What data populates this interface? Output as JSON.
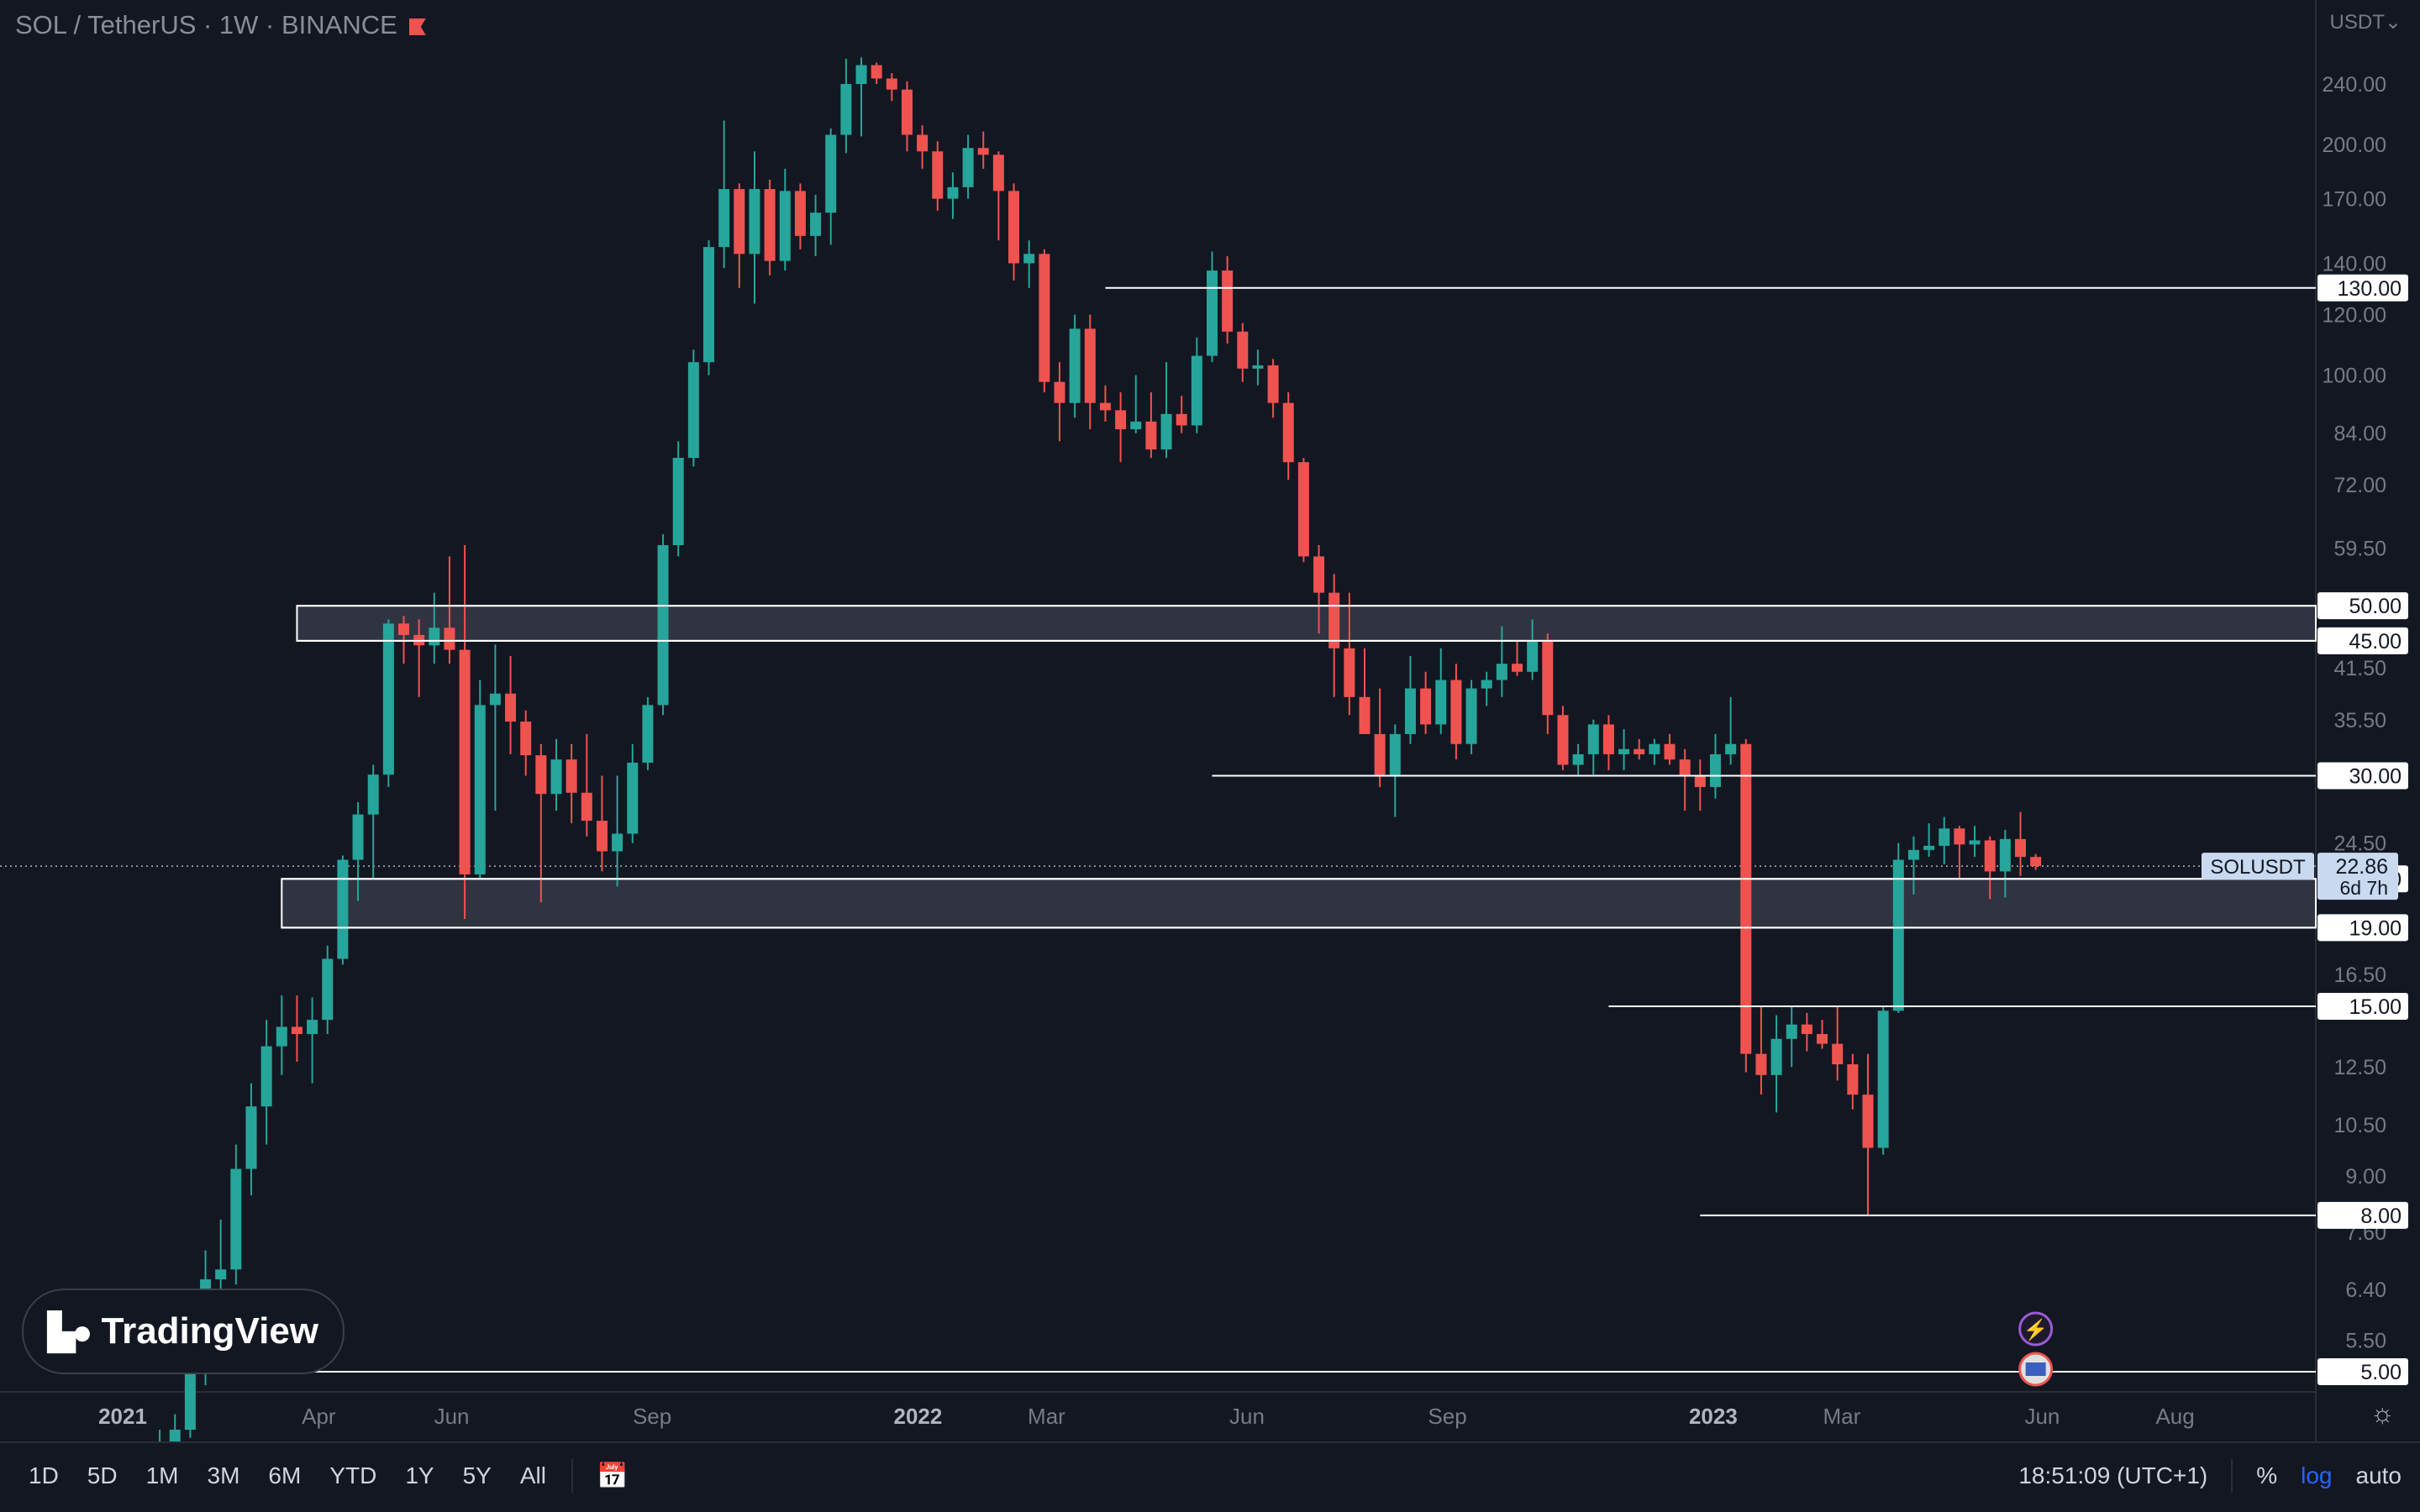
{
  "header": {
    "symbol_title": "SOL / TetherUS · 1W · BINANCE",
    "currency": "USDT",
    "currency_chevron": "chevron-down-icon"
  },
  "logo": {
    "text": "TradingView"
  },
  "bottom_bar": {
    "timeframes": [
      "1D",
      "5D",
      "1M",
      "3M",
      "6M",
      "YTD",
      "1Y",
      "5Y",
      "All"
    ],
    "clock": "18:51:09 (UTC+1)",
    "percent": "%",
    "log": "log",
    "auto": "auto"
  },
  "colors": {
    "bg": "#131722",
    "up": "#26a69a",
    "down": "#ef5350",
    "level": "#ffffff",
    "zone": "#363a45"
  },
  "chart_data": {
    "type": "candlestick",
    "symbol": "SOLUSDT",
    "interval": "1W",
    "scale": "log",
    "y_ticks": [
      240,
      200,
      170,
      140,
      120,
      100,
      84,
      72,
      59.5,
      41.5,
      35.5,
      24.5,
      16.5,
      12.5,
      10.5,
      9,
      7.6,
      6.4,
      5.5
    ],
    "y_tick_labels": [
      "240.00",
      "200.00",
      "170.00",
      "140.00",
      "120.00",
      "100.00",
      "84.00",
      "72.00",
      "59.50",
      "41.50",
      "35.50",
      "24.50",
      "16.50",
      "12.50",
      "10.50",
      "9.00",
      "7.60",
      "6.40",
      "5.50"
    ],
    "x_ticks": [
      {
        "label": "2021",
        "date": "2021-01-01",
        "bold": true
      },
      {
        "label": "Apr",
        "date": "2021-04-01"
      },
      {
        "label": "Jun",
        "date": "2021-06-01"
      },
      {
        "label": "Sep",
        "date": "2021-09-01"
      },
      {
        "label": "2022",
        "date": "2022-01-01",
        "bold": true
      },
      {
        "label": "Mar",
        "date": "2022-03-01"
      },
      {
        "label": "Jun",
        "date": "2022-06-01"
      },
      {
        "label": "Sep",
        "date": "2022-09-01"
      },
      {
        "label": "2023",
        "date": "2023-01-01",
        "bold": true
      },
      {
        "label": "Mar",
        "date": "2023-03-01"
      },
      {
        "label": "Jun",
        "date": "2023-06-01"
      },
      {
        "label": "Aug",
        "date": "2023-08-01"
      }
    ],
    "levels": [
      {
        "price": 130,
        "label": "130.00",
        "start": "2022-03-28"
      },
      {
        "price": 50,
        "label": "50.00",
        "start": "2021-03-22"
      },
      {
        "price": 45,
        "label": "45.00",
        "start": "2021-03-22"
      },
      {
        "price": 30,
        "label": "30.00",
        "start": "2022-05-16"
      },
      {
        "price": 22,
        "label": "22.00",
        "start": "2021-03-15"
      },
      {
        "price": 19,
        "label": "19.00",
        "start": "2021-03-15"
      },
      {
        "price": 15,
        "label": "15.00",
        "start": "2022-11-14"
      },
      {
        "price": 8,
        "label": "8.00",
        "start": "2022-12-26"
      },
      {
        "price": 5,
        "label": "5.00",
        "start": "2020-12-01"
      }
    ],
    "zones": [
      {
        "top": 50,
        "bottom": 45,
        "start": "2021-03-22"
      },
      {
        "top": 22,
        "bottom": 19,
        "start": "2021-03-15"
      }
    ],
    "current_price": {
      "symbol": "SOLUSDT",
      "value": 22.86,
      "label": "22.86",
      "countdown": "6d 7h"
    },
    "candles": [
      {
        "t": "2021-01-18",
        "o": 3.3,
        "h": 4.2,
        "l": 3.1,
        "c": 3.9
      },
      {
        "t": "2021-01-25",
        "o": 3.9,
        "h": 4.4,
        "l": 3.7,
        "c": 4.2
      },
      {
        "t": "2021-02-01",
        "o": 4.2,
        "h": 6.1,
        "l": 4.1,
        "c": 5.0
      },
      {
        "t": "2021-02-08",
        "o": 5.0,
        "h": 7.2,
        "l": 4.8,
        "c": 6.6
      },
      {
        "t": "2021-02-15",
        "o": 6.6,
        "h": 7.9,
        "l": 6.2,
        "c": 6.8
      },
      {
        "t": "2021-02-22",
        "o": 6.8,
        "h": 9.9,
        "l": 6.5,
        "c": 9.2
      },
      {
        "t": "2021-03-01",
        "o": 9.2,
        "h": 11.9,
        "l": 8.5,
        "c": 11.1
      },
      {
        "t": "2021-03-08",
        "o": 11.1,
        "h": 14.4,
        "l": 9.9,
        "c": 13.3
      },
      {
        "t": "2021-03-15",
        "o": 13.3,
        "h": 15.5,
        "l": 12.2,
        "c": 14.1
      },
      {
        "t": "2021-03-22",
        "o": 14.1,
        "h": 15.5,
        "l": 12.7,
        "c": 13.8
      },
      {
        "t": "2021-03-29",
        "o": 13.8,
        "h": 15.4,
        "l": 11.9,
        "c": 14.4
      },
      {
        "t": "2021-04-05",
        "o": 14.4,
        "h": 18.0,
        "l": 13.8,
        "c": 17.3
      },
      {
        "t": "2021-04-12",
        "o": 17.3,
        "h": 23.6,
        "l": 17.0,
        "c": 23.3
      },
      {
        "t": "2021-04-19",
        "o": 23.3,
        "h": 27.7,
        "l": 20.6,
        "c": 26.7
      },
      {
        "t": "2021-04-26",
        "o": 26.7,
        "h": 31.0,
        "l": 22.0,
        "c": 30.1
      },
      {
        "t": "2021-05-03",
        "o": 30.1,
        "h": 48.0,
        "l": 29.0,
        "c": 47.4
      },
      {
        "t": "2021-05-10",
        "o": 47.4,
        "h": 48.5,
        "l": 42.0,
        "c": 45.8
      },
      {
        "t": "2021-05-17",
        "o": 45.8,
        "h": 48.0,
        "l": 38.0,
        "c": 44.4
      },
      {
        "t": "2021-05-24",
        "o": 44.4,
        "h": 52.0,
        "l": 42.0,
        "c": 46.8
      },
      {
        "t": "2021-05-31",
        "o": 46.8,
        "h": 58.0,
        "l": 42.0,
        "c": 43.8
      },
      {
        "t": "2021-06-07",
        "o": 43.8,
        "h": 60.0,
        "l": 19.5,
        "c": 22.3
      },
      {
        "t": "2021-06-14",
        "o": 22.3,
        "h": 40.0,
        "l": 22.0,
        "c": 37.1
      },
      {
        "t": "2021-06-21",
        "o": 37.1,
        "h": 44.5,
        "l": 27.0,
        "c": 38.4
      },
      {
        "t": "2021-06-28",
        "o": 38.4,
        "h": 43.0,
        "l": 32.0,
        "c": 35.3
      },
      {
        "t": "2021-07-05",
        "o": 35.3,
        "h": 36.5,
        "l": 30.0,
        "c": 31.9
      },
      {
        "t": "2021-07-12",
        "o": 31.9,
        "h": 33.0,
        "l": 20.5,
        "c": 28.4
      },
      {
        "t": "2021-07-19",
        "o": 28.4,
        "h": 33.5,
        "l": 27.0,
        "c": 31.5
      },
      {
        "t": "2021-07-26",
        "o": 31.5,
        "h": 33.0,
        "l": 26.0,
        "c": 28.5
      },
      {
        "t": "2021-08-02",
        "o": 28.5,
        "h": 34.0,
        "l": 25.0,
        "c": 26.2
      },
      {
        "t": "2021-08-09",
        "o": 26.2,
        "h": 30.0,
        "l": 22.5,
        "c": 23.9
      },
      {
        "t": "2021-08-16",
        "o": 23.9,
        "h": 30.0,
        "l": 21.5,
        "c": 25.2
      },
      {
        "t": "2021-08-23",
        "o": 25.2,
        "h": 33.0,
        "l": 24.5,
        "c": 31.2
      },
      {
        "t": "2021-08-30",
        "o": 31.2,
        "h": 38.0,
        "l": 30.5,
        "c": 37.1
      },
      {
        "t": "2021-09-06",
        "o": 37.1,
        "h": 62.0,
        "l": 36.0,
        "c": 60.0
      },
      {
        "t": "2021-09-13",
        "o": 60.0,
        "h": 82.0,
        "l": 58.0,
        "c": 78.0
      },
      {
        "t": "2021-09-20",
        "o": 78.0,
        "h": 108.0,
        "l": 76.0,
        "c": 104.0
      },
      {
        "t": "2021-09-27",
        "o": 104.0,
        "h": 150.0,
        "l": 100.0,
        "c": 147.0
      },
      {
        "t": "2021-10-04",
        "o": 147.0,
        "h": 215.0,
        "l": 138.0,
        "c": 175.0
      },
      {
        "t": "2021-10-11",
        "o": 175.0,
        "h": 178.0,
        "l": 130.0,
        "c": 144.0
      },
      {
        "t": "2021-10-18",
        "o": 144.0,
        "h": 196.0,
        "l": 124.0,
        "c": 175.0
      },
      {
        "t": "2021-10-25",
        "o": 175.0,
        "h": 180.0,
        "l": 135.0,
        "c": 141.0
      },
      {
        "t": "2021-11-01",
        "o": 141.0,
        "h": 186.0,
        "l": 137.0,
        "c": 174.0
      },
      {
        "t": "2021-11-08",
        "o": 174.0,
        "h": 178.0,
        "l": 146.0,
        "c": 152.0
      },
      {
        "t": "2021-11-15",
        "o": 152.0,
        "h": 172.0,
        "l": 143.0,
        "c": 163.0
      },
      {
        "t": "2021-11-22",
        "o": 163.0,
        "h": 210.0,
        "l": 148.0,
        "c": 206.0
      },
      {
        "t": "2021-11-29",
        "o": 206.0,
        "h": 259.0,
        "l": 195.0,
        "c": 240.0
      },
      {
        "t": "2021-12-06",
        "o": 240.0,
        "h": 260.0,
        "l": 205.0,
        "c": 254.0
      },
      {
        "t": "2021-12-13",
        "o": 254.0,
        "h": 256.0,
        "l": 240.0,
        "c": 244.0
      },
      {
        "t": "2021-12-20",
        "o": 244.0,
        "h": 248.0,
        "l": 228.0,
        "c": 236.0
      },
      {
        "t": "2021-12-27",
        "o": 236.0,
        "h": 242.0,
        "l": 196.0,
        "c": 206.0
      },
      {
        "t": "2022-01-03",
        "o": 206.0,
        "h": 212.0,
        "l": 186.0,
        "c": 196.0
      },
      {
        "t": "2022-01-10",
        "o": 196.0,
        "h": 202.0,
        "l": 164.0,
        "c": 170.0
      },
      {
        "t": "2022-01-17",
        "o": 170.0,
        "h": 184.0,
        "l": 160.0,
        "c": 176.0
      },
      {
        "t": "2022-01-24",
        "o": 176.0,
        "h": 206.0,
        "l": 170.0,
        "c": 198.0
      },
      {
        "t": "2022-01-31",
        "o": 198.0,
        "h": 208.0,
        "l": 186.0,
        "c": 194.0
      },
      {
        "t": "2022-02-07",
        "o": 194.0,
        "h": 196.0,
        "l": 150.0,
        "c": 174.0
      },
      {
        "t": "2022-02-14",
        "o": 174.0,
        "h": 178.0,
        "l": 133.0,
        "c": 140.0
      },
      {
        "t": "2022-02-21",
        "o": 140.0,
        "h": 150.0,
        "l": 130.0,
        "c": 144.0
      },
      {
        "t": "2022-02-28",
        "o": 144.0,
        "h": 146.0,
        "l": 95.0,
        "c": 98.0
      },
      {
        "t": "2022-03-07",
        "o": 98.0,
        "h": 104.0,
        "l": 82.0,
        "c": 92.0
      },
      {
        "t": "2022-03-14",
        "o": 92.0,
        "h": 120.0,
        "l": 88.0,
        "c": 115.0
      },
      {
        "t": "2022-03-21",
        "o": 115.0,
        "h": 120.0,
        "l": 85.0,
        "c": 92.0
      },
      {
        "t": "2022-03-28",
        "o": 92.0,
        "h": 97.0,
        "l": 87.0,
        "c": 90.0
      },
      {
        "t": "2022-04-04",
        "o": 90.0,
        "h": 95.0,
        "l": 77.0,
        "c": 85.0
      },
      {
        "t": "2022-04-11",
        "o": 85.0,
        "h": 100.0,
        "l": 84.0,
        "c": 87.0
      },
      {
        "t": "2022-04-18",
        "o": 87.0,
        "h": 95.0,
        "l": 78.0,
        "c": 80.0
      },
      {
        "t": "2022-04-25",
        "o": 80.0,
        "h": 104.0,
        "l": 78.0,
        "c": 89.0
      },
      {
        "t": "2022-05-02",
        "o": 89.0,
        "h": 94.0,
        "l": 84.0,
        "c": 86.0
      },
      {
        "t": "2022-05-09",
        "o": 86.0,
        "h": 112.0,
        "l": 84.0,
        "c": 106.0
      },
      {
        "t": "2022-05-16",
        "o": 106.0,
        "h": 145.0,
        "l": 104.0,
        "c": 137.0
      },
      {
        "t": "2022-05-23",
        "o": 137.0,
        "h": 143.0,
        "l": 110.0,
        "c": 114.0
      },
      {
        "t": "2022-05-30",
        "o": 114.0,
        "h": 117.0,
        "l": 98.0,
        "c": 102.0
      },
      {
        "t": "2022-06-06",
        "o": 102.0,
        "h": 108.0,
        "l": 97.0,
        "c": 103.0
      },
      {
        "t": "2022-06-13",
        "o": 103.0,
        "h": 105.0,
        "l": 88.0,
        "c": 92.0
      },
      {
        "t": "2022-06-20",
        "o": 92.0,
        "h": 95.0,
        "l": 73.0,
        "c": 77.0
      },
      {
        "t": "2022-06-27",
        "o": 77.0,
        "h": 78.0,
        "l": 57.0,
        "c": 58.0
      },
      {
        "t": "2022-07-04",
        "o": 58.0,
        "h": 60.0,
        "l": 46.0,
        "c": 52.0
      },
      {
        "t": "2022-07-11",
        "o": 52.0,
        "h": 55.0,
        "l": 38.0,
        "c": 44.0
      },
      {
        "t": "2022-07-18",
        "o": 44.0,
        "h": 52.0,
        "l": 36.0,
        "c": 38.0
      },
      {
        "t": "2022-07-25",
        "o": 38.0,
        "h": 44.0,
        "l": 34.0,
        "c": 34.0
      },
      {
        "t": "2022-08-01",
        "o": 34.0,
        "h": 39.0,
        "l": 29.0,
        "c": 30.0
      },
      {
        "t": "2022-08-08",
        "o": 30.0,
        "h": 35.0,
        "l": 26.5,
        "c": 34.0
      },
      {
        "t": "2022-08-15",
        "o": 34.0,
        "h": 43.0,
        "l": 33.0,
        "c": 39.0
      },
      {
        "t": "2022-08-22",
        "o": 39.0,
        "h": 41.0,
        "l": 34.0,
        "c": 35.0
      },
      {
        "t": "2022-08-29",
        "o": 35.0,
        "h": 44.0,
        "l": 34.0,
        "c": 40.0
      },
      {
        "t": "2022-09-05",
        "o": 40.0,
        "h": 42.0,
        "l": 31.5,
        "c": 33.0
      },
      {
        "t": "2022-09-12",
        "o": 33.0,
        "h": 40.0,
        "l": 32.0,
        "c": 39.0
      },
      {
        "t": "2022-09-19",
        "o": 39.0,
        "h": 41.0,
        "l": 37.0,
        "c": 40.0
      },
      {
        "t": "2022-09-26",
        "o": 40.0,
        "h": 47.0,
        "l": 38.0,
        "c": 42.0
      },
      {
        "t": "2022-10-03",
        "o": 42.0,
        "h": 45.0,
        "l": 40.5,
        "c": 41.0
      },
      {
        "t": "2022-10-10",
        "o": 41.0,
        "h": 48.0,
        "l": 40.0,
        "c": 45.0
      },
      {
        "t": "2022-10-17",
        "o": 45.0,
        "h": 46.0,
        "l": 34.0,
        "c": 36.0
      },
      {
        "t": "2022-10-24",
        "o": 36.0,
        "h": 37.0,
        "l": 30.5,
        "c": 31.0
      },
      {
        "t": "2022-10-31",
        "o": 31.0,
        "h": 33.0,
        "l": 30.0,
        "c": 32.0
      },
      {
        "t": "2022-11-07",
        "o": 32.0,
        "h": 35.5,
        "l": 30.0,
        "c": 35.0
      },
      {
        "t": "2022-11-14",
        "o": 35.0,
        "h": 36.0,
        "l": 30.5,
        "c": 32.0
      },
      {
        "t": "2022-11-21",
        "o": 32.0,
        "h": 34.5,
        "l": 30.5,
        "c": 32.5
      },
      {
        "t": "2022-11-28",
        "o": 32.5,
        "h": 33.5,
        "l": 31.5,
        "c": 32.0
      },
      {
        "t": "2022-12-05",
        "o": 32.0,
        "h": 33.5,
        "l": 31.0,
        "c": 33.0
      },
      {
        "t": "2022-12-12",
        "o": 33.0,
        "h": 34.0,
        "l": 31.0,
        "c": 31.5
      },
      {
        "t": "2022-12-19",
        "o": 31.5,
        "h": 32.5,
        "l": 27.0,
        "c": 30.0
      },
      {
        "t": "2022-12-26",
        "o": 30.0,
        "h": 31.5,
        "l": 27.0,
        "c": 29.0
      },
      {
        "t": "2023-01-02",
        "o": 29.0,
        "h": 34.0,
        "l": 28.0,
        "c": 32.0
      },
      {
        "t": "2023-01-09",
        "o": 32.0,
        "h": 38.0,
        "l": 31.0,
        "c": 33.0
      },
      {
        "t": "2023-01-16",
        "o": 33.0,
        "h": 33.5,
        "l": 12.3,
        "c": 13.0
      },
      {
        "t": "2023-01-23",
        "o": 13.0,
        "h": 15.0,
        "l": 11.5,
        "c": 12.2
      },
      {
        "t": "2023-01-30",
        "o": 12.2,
        "h": 14.6,
        "l": 10.9,
        "c": 13.6
      },
      {
        "t": "2023-02-06",
        "o": 13.6,
        "h": 15.0,
        "l": 12.5,
        "c": 14.2
      },
      {
        "t": "2023-02-13",
        "o": 14.2,
        "h": 14.7,
        "l": 13.1,
        "c": 13.8
      },
      {
        "t": "2023-02-20",
        "o": 13.8,
        "h": 14.4,
        "l": 13.2,
        "c": 13.4
      },
      {
        "t": "2023-02-27",
        "o": 13.4,
        "h": 15.0,
        "l": 12.0,
        "c": 12.6
      },
      {
        "t": "2023-03-06",
        "o": 12.6,
        "h": 13.0,
        "l": 11.0,
        "c": 11.5
      },
      {
        "t": "2023-03-13",
        "o": 11.5,
        "h": 13.0,
        "l": 8.0,
        "c": 9.8
      },
      {
        "t": "2023-03-20",
        "o": 9.8,
        "h": 15.0,
        "l": 9.6,
        "c": 14.8
      },
      {
        "t": "2023-03-27",
        "o": 14.8,
        "h": 24.5,
        "l": 14.7,
        "c": 23.3
      },
      {
        "t": "2023-04-03",
        "o": 23.3,
        "h": 25.0,
        "l": 21.0,
        "c": 24.0
      },
      {
        "t": "2023-04-10",
        "o": 24.0,
        "h": 26.0,
        "l": 23.5,
        "c": 24.3
      },
      {
        "t": "2023-04-17",
        "o": 24.3,
        "h": 26.5,
        "l": 23.0,
        "c": 25.6
      },
      {
        "t": "2023-04-24",
        "o": 25.6,
        "h": 25.8,
        "l": 22.0,
        "c": 24.4
      },
      {
        "t": "2023-05-01",
        "o": 24.4,
        "h": 25.8,
        "l": 23.5,
        "c": 24.7
      },
      {
        "t": "2023-05-08",
        "o": 24.7,
        "h": 25.0,
        "l": 20.7,
        "c": 22.5
      },
      {
        "t": "2023-05-15",
        "o": 22.5,
        "h": 25.5,
        "l": 20.8,
        "c": 24.8
      },
      {
        "t": "2023-05-22",
        "o": 24.8,
        "h": 26.9,
        "l": 22.2,
        "c": 23.5
      },
      {
        "t": "2023-05-29",
        "o": 23.5,
        "h": 23.7,
        "l": 22.6,
        "c": 22.86
      }
    ],
    "event_markers": [
      {
        "date": "2023-05-29",
        "icon": "lightning-icon"
      },
      {
        "date": "2023-05-29",
        "icon": "us-flag-icon"
      }
    ]
  }
}
